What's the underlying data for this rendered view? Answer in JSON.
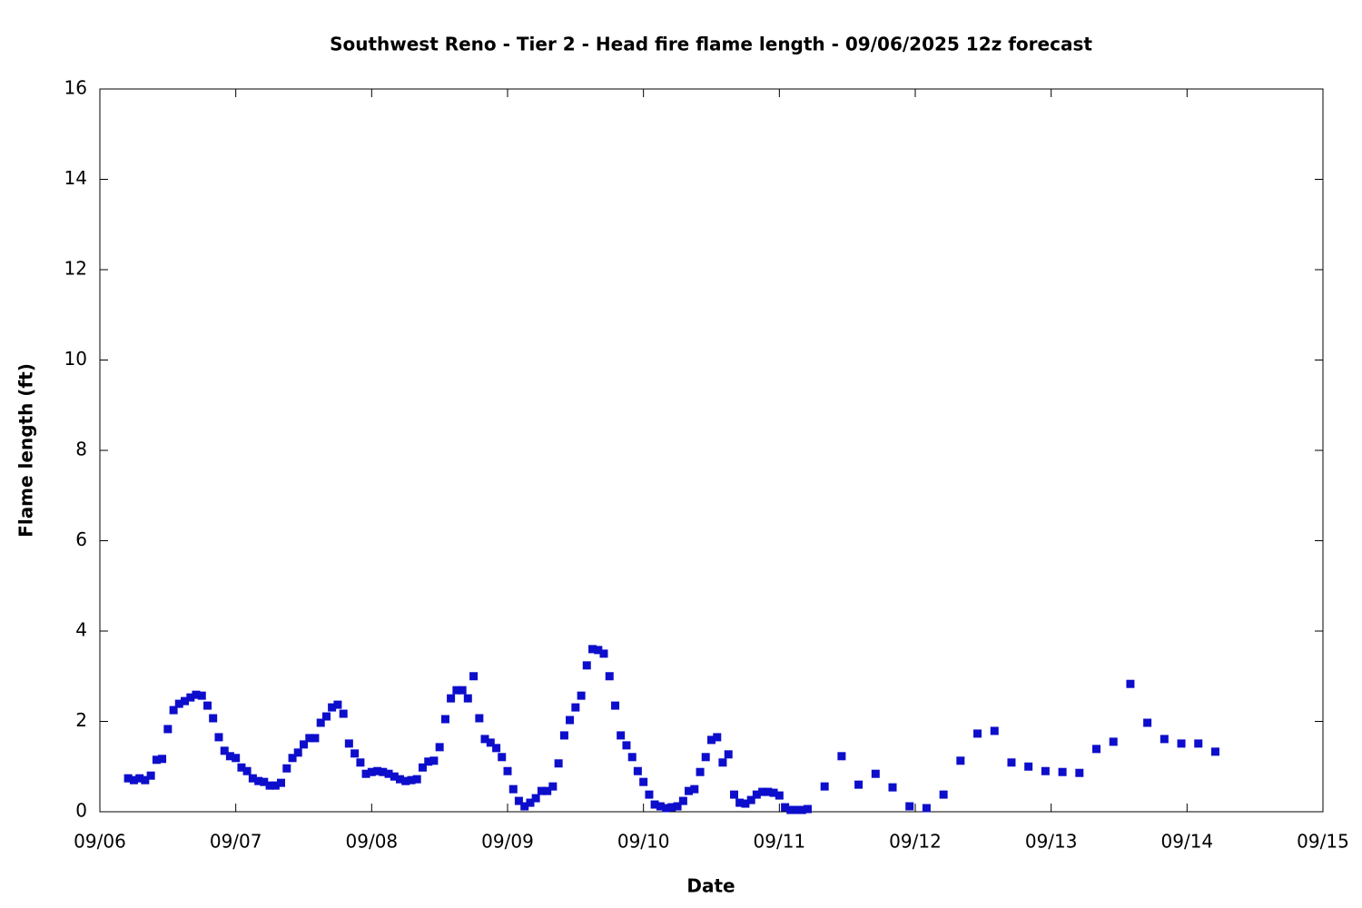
{
  "chart_data": {
    "type": "scatter",
    "title": "Southwest Reno - Tier 2 - Head fire flame length - 09/06/2025 12z forecast",
    "xlabel": "Date",
    "ylabel": "Flame length (ft)",
    "color": "#0d0dcc",
    "xlim": [
      0,
      9
    ],
    "xticks": [
      {
        "value": 0,
        "label": "09/06"
      },
      {
        "value": 1,
        "label": "09/07"
      },
      {
        "value": 2,
        "label": "09/08"
      },
      {
        "value": 3,
        "label": "09/09"
      },
      {
        "value": 4,
        "label": "09/10"
      },
      {
        "value": 5,
        "label": "09/11"
      },
      {
        "value": 6,
        "label": "09/12"
      },
      {
        "value": 7,
        "label": "09/13"
      },
      {
        "value": 8,
        "label": "09/14"
      },
      {
        "value": 9,
        "label": "09/15"
      }
    ],
    "ylim": [
      0,
      16
    ],
    "yticks": [
      0,
      2,
      4,
      6,
      8,
      10,
      12,
      14,
      16
    ],
    "x": [
      0.208,
      0.25,
      0.292,
      0.333,
      0.375,
      0.417,
      0.458,
      0.5,
      0.542,
      0.583,
      0.625,
      0.667,
      0.708,
      0.75,
      0.792,
      0.833,
      0.875,
      0.917,
      0.958,
      1,
      1.042,
      1.083,
      1.125,
      1.167,
      1.208,
      1.25,
      1.292,
      1.333,
      1.375,
      1.417,
      1.458,
      1.5,
      1.542,
      1.583,
      1.625,
      1.667,
      1.708,
      1.75,
      1.792,
      1.833,
      1.875,
      1.917,
      1.958,
      2,
      2.042,
      2.083,
      2.125,
      2.167,
      2.208,
      2.25,
      2.292,
      2.333,
      2.375,
      2.417,
      2.458,
      2.5,
      2.542,
      2.583,
      2.625,
      2.667,
      2.708,
      2.75,
      2.792,
      2.833,
      2.875,
      2.917,
      2.958,
      3,
      3.042,
      3.083,
      3.125,
      3.167,
      3.208,
      3.25,
      3.292,
      3.333,
      3.375,
      3.417,
      3.458,
      3.5,
      3.542,
      3.583,
      3.625,
      3.667,
      3.708,
      3.75,
      3.792,
      3.833,
      3.875,
      3.917,
      3.958,
      4,
      4.042,
      4.083,
      4.125,
      4.167,
      4.208,
      4.25,
      4.292,
      4.333,
      4.375,
      4.417,
      4.458,
      4.5,
      4.542,
      4.583,
      4.625,
      4.667,
      4.708,
      4.75,
      4.792,
      4.833,
      4.875,
      4.917,
      4.958,
      5,
      5.042,
      5.083,
      5.125,
      5.167,
      5.208,
      5.333,
      5.458,
      5.583,
      5.708,
      5.833,
      5.958,
      6.083,
      6.208,
      6.333,
      6.458,
      6.583,
      6.708,
      6.833,
      6.958,
      7.083,
      7.208,
      7.333,
      7.458,
      7.583,
      7.708,
      7.833,
      7.958,
      8.083,
      8.208
    ],
    "values": [
      0.74,
      0.7,
      0.74,
      0.7,
      0.8,
      1.15,
      1.17,
      1.83,
      2.25,
      2.39,
      2.45,
      2.53,
      2.59,
      2.57,
      2.35,
      2.07,
      1.65,
      1.35,
      1.23,
      1.19,
      0.98,
      0.9,
      0.74,
      0.68,
      0.66,
      0.58,
      0.58,
      0.64,
      0.96,
      1.19,
      1.31,
      1.49,
      1.63,
      1.63,
      1.97,
      2.11,
      2.31,
      2.37,
      2.17,
      1.51,
      1.29,
      1.09,
      0.84,
      0.88,
      0.9,
      0.88,
      0.84,
      0.78,
      0.72,
      0.68,
      0.7,
      0.72,
      0.98,
      1.11,
      1.13,
      1.43,
      2.05,
      2.51,
      2.69,
      2.69,
      2.51,
      3.0,
      2.07,
      1.61,
      1.53,
      1.41,
      1.21,
      0.9,
      0.5,
      0.24,
      0.12,
      0.2,
      0.3,
      0.46,
      0.46,
      0.56,
      1.07,
      1.69,
      2.03,
      2.31,
      2.57,
      3.24,
      3.6,
      3.58,
      3.5,
      3.0,
      2.35,
      1.69,
      1.47,
      1.21,
      0.9,
      0.66,
      0.38,
      0.16,
      0.12,
      0.08,
      0.1,
      0.12,
      0.24,
      0.46,
      0.5,
      0.88,
      1.21,
      1.59,
      1.65,
      1.09,
      1.27,
      0.38,
      0.2,
      0.18,
      0.26,
      0.38,
      0.44,
      0.44,
      0.42,
      0.36,
      0.1,
      0.04,
      0.04,
      0.04,
      0.06,
      0.56,
      1.23,
      0.6,
      0.84,
      0.54,
      0.12,
      0.08,
      0.38,
      1.13,
      1.73,
      1.79,
      1.09,
      1.0,
      0.9,
      0.88,
      0.86,
      1.39,
      1.55,
      2.83,
      1.97,
      1.61,
      1.51,
      1.51,
      1.33
    ]
  }
}
